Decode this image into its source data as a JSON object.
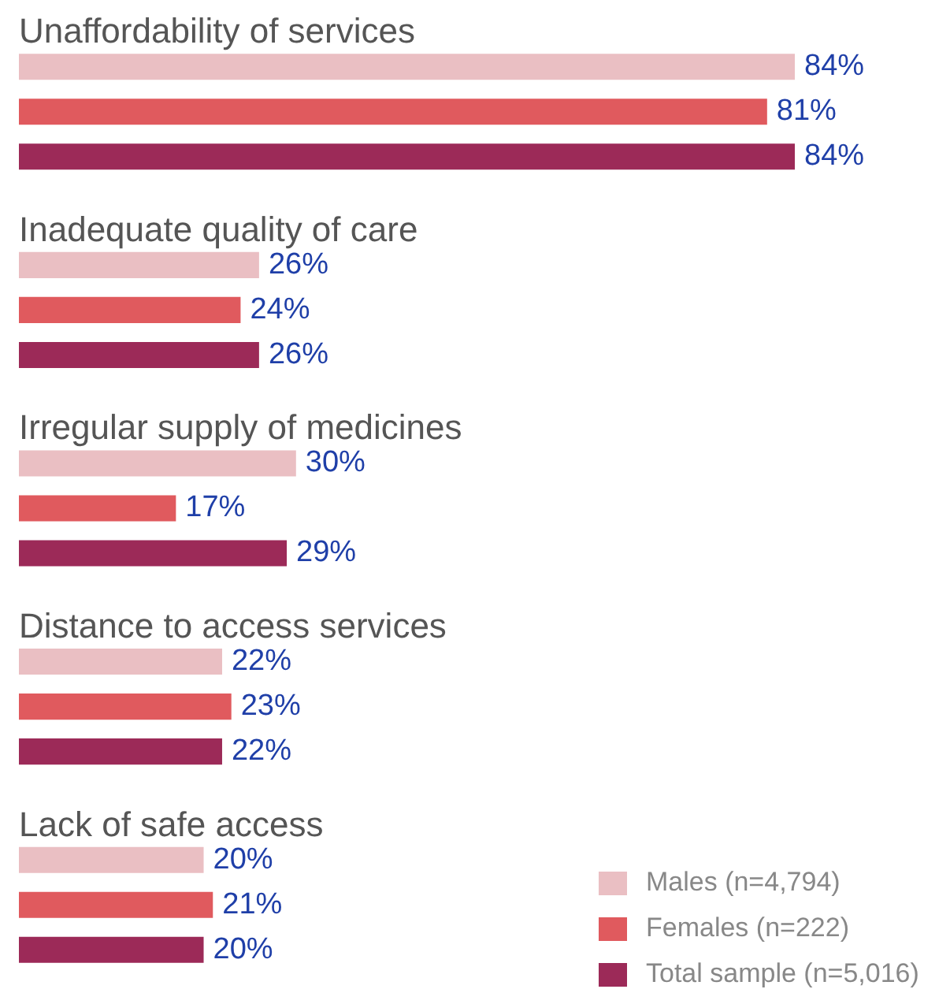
{
  "chart_data": {
    "type": "bar",
    "orientation": "horizontal",
    "categories": [
      "Unaffordability of services",
      "Inadequate quality of care",
      "Irregular supply of medicines",
      "Distance to access services",
      "Lack of safe access"
    ],
    "series": [
      {
        "name": "Males (n=4,794)",
        "color": "#eabfc3",
        "values": [
          84,
          26,
          30,
          22,
          20
        ],
        "value_labels": [
          "84%",
          "26%",
          "30%",
          "22%",
          "20%"
        ]
      },
      {
        "name": "Females (n=222)",
        "color": "#e05a5e",
        "values": [
          81,
          24,
          17,
          23,
          21
        ],
        "value_labels": [
          "81%",
          "24%",
          "17%",
          "23%",
          "21%"
        ]
      },
      {
        "name": "Total sample (n=5,016)",
        "color": "#9c2a58",
        "values": [
          84,
          26,
          29,
          22,
          20
        ],
        "value_labels": [
          "84%",
          "26%",
          "29%",
          "22%",
          "20%"
        ]
      }
    ],
    "legend": "bottom right"
  }
}
